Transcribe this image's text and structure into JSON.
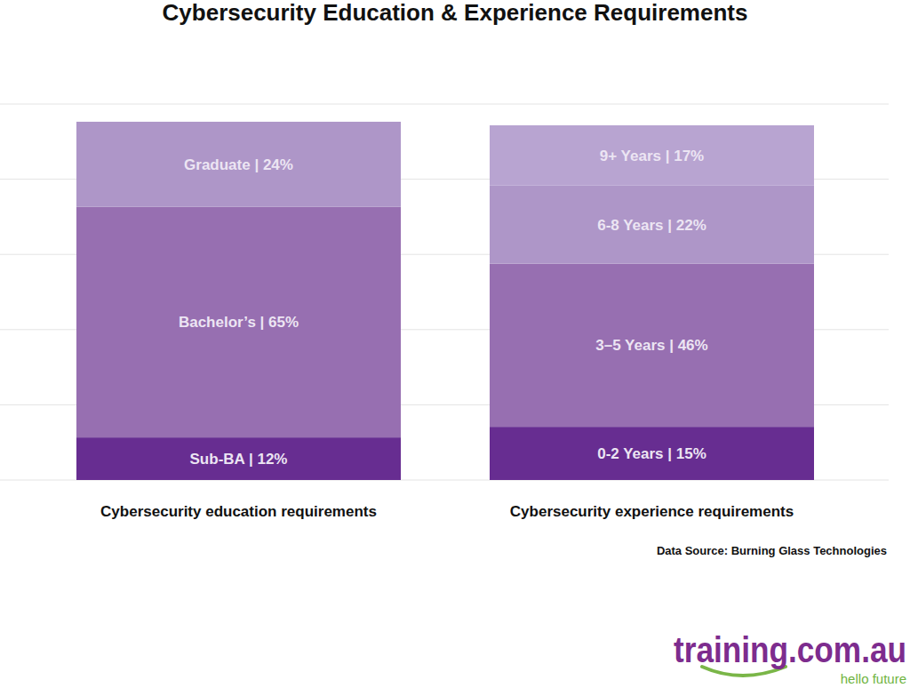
{
  "title": "Cybersecurity Education & Experience Requirements",
  "source": "Data Source: Burning Glass Technologies",
  "brand": "training.com.au",
  "tagline": "hello future",
  "chart_data": [
    {
      "type": "bar",
      "stacked": true,
      "grid": true,
      "tick_labels": false,
      "data_labels": true,
      "categories": [
        "Cybersecurity education requirements"
      ],
      "ylim": [
        0,
        106
      ],
      "yticks": [
        0,
        21.2,
        42.4,
        63.6,
        84.8,
        106
      ],
      "series": [
        {
          "color": "#672d91",
          "values": [
            12
          ],
          "value_labels": [
            "Sub-BA | 12%"
          ]
        },
        {
          "color": "#976fb1",
          "values": [
            65
          ],
          "value_labels": [
            "Bachelor’s | 65%"
          ]
        },
        {
          "color": "#ae96c8",
          "values": [
            24
          ],
          "value_labels": [
            "Graduate | 24%"
          ]
        }
      ]
    },
    {
      "type": "bar",
      "stacked": true,
      "grid": true,
      "tick_labels": false,
      "data_labels": true,
      "categories": [
        "Cybersecurity experience requirements"
      ],
      "ylim": [
        0,
        106
      ],
      "yticks": [
        0,
        21.2,
        42.4,
        63.6,
        84.8,
        106
      ],
      "series": [
        {
          "color": "#672d91",
          "values": [
            15
          ],
          "value_labels": [
            "0-2 Years | 15%"
          ]
        },
        {
          "color": "#976fb1",
          "values": [
            46
          ],
          "value_labels": [
            "3–5 Years | 46%"
          ]
        },
        {
          "color": "#ae96c8",
          "values": [
            22
          ],
          "value_labels": [
            "6-8 Years | 22%"
          ]
        },
        {
          "color": "#b8a4d1",
          "values": [
            17
          ],
          "value_labels": [
            "9+ Years | 17%"
          ]
        }
      ]
    }
  ]
}
